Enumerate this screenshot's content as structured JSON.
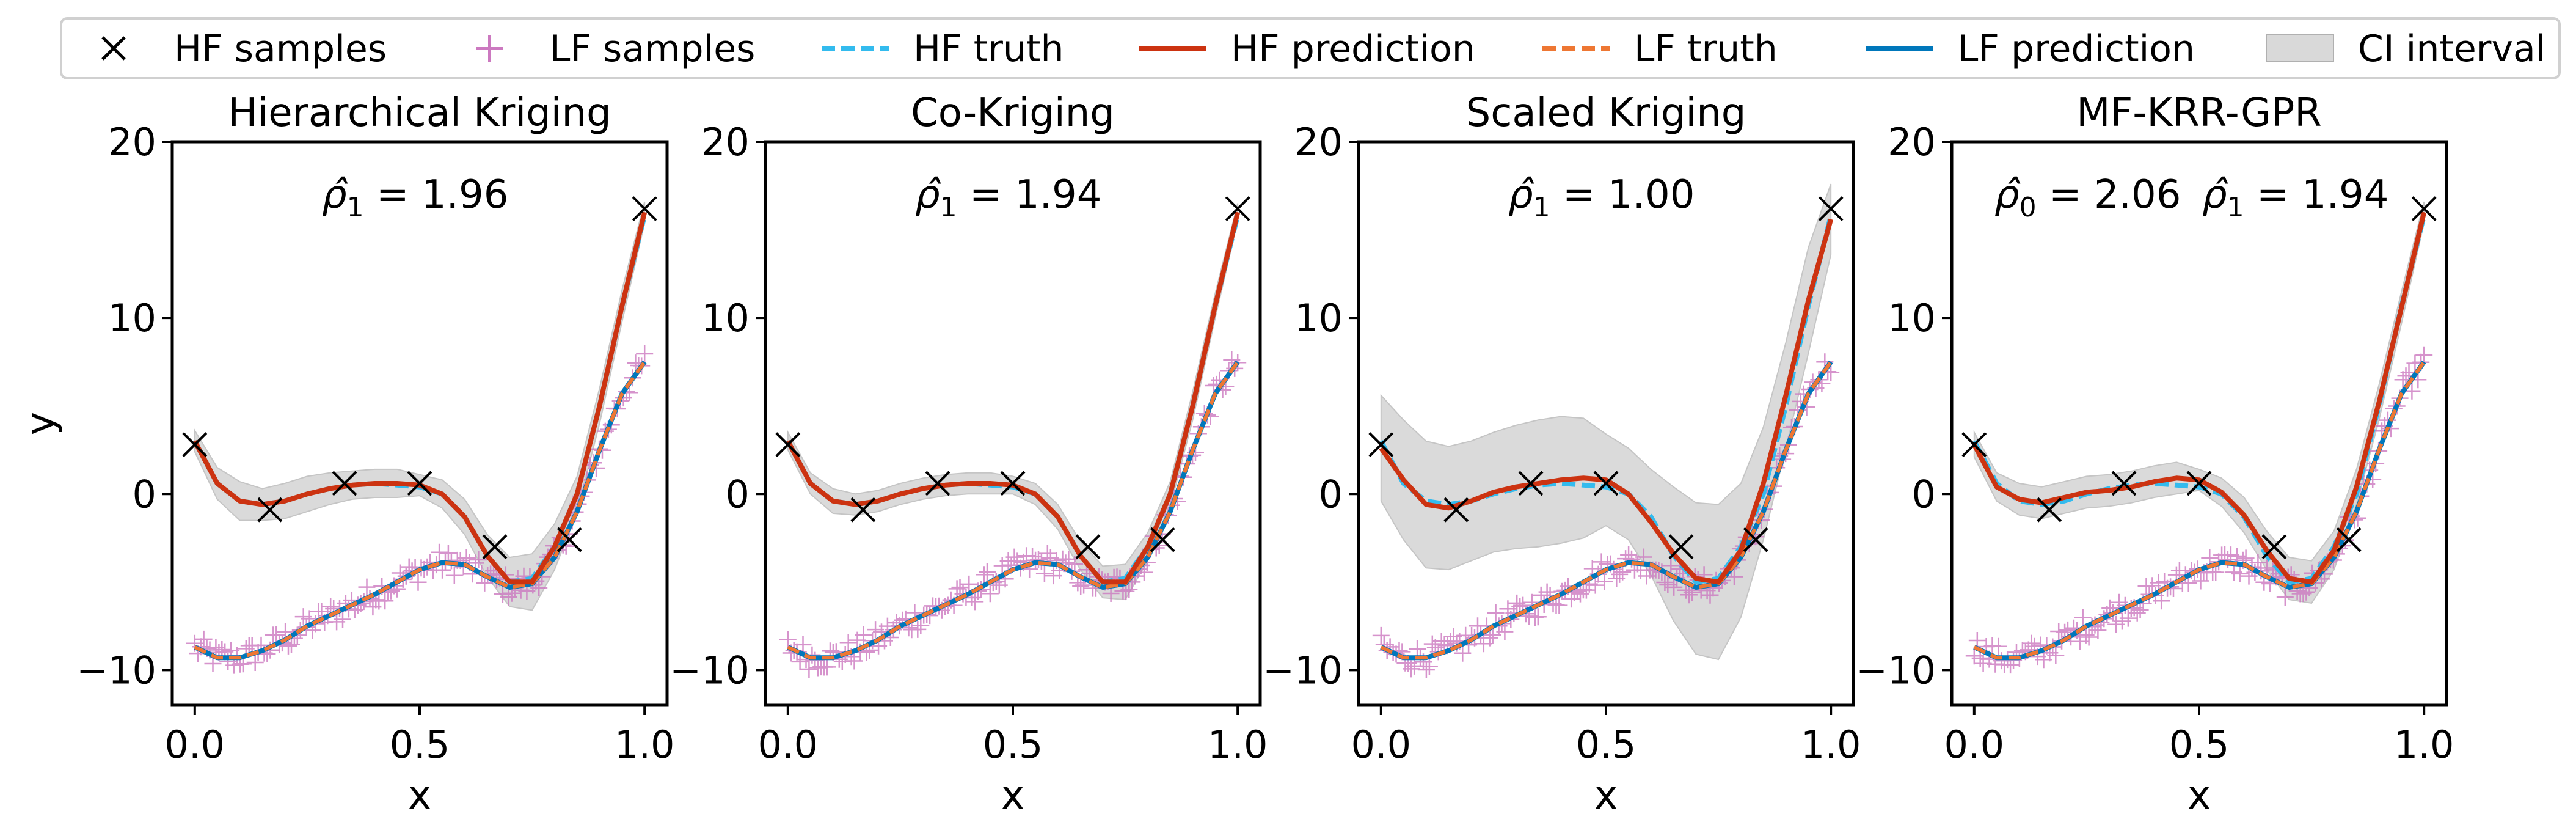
{
  "legend": {
    "items": [
      {
        "key": "hf_samples",
        "label": "HF samples",
        "kind": "x-marker",
        "color": "#000000"
      },
      {
        "key": "lf_samples",
        "label": "LF samples",
        "kind": "plus-marker",
        "color": "#cc79c0"
      },
      {
        "key": "hf_truth",
        "label": "HF truth",
        "kind": "dashed-line",
        "color": "#33bbee"
      },
      {
        "key": "hf_prediction",
        "label": "HF prediction",
        "kind": "solid-line",
        "color": "#cc3311"
      },
      {
        "key": "lf_truth",
        "label": "LF truth",
        "kind": "dashed-line",
        "color": "#ee7733"
      },
      {
        "key": "lf_prediction",
        "label": "LF prediction",
        "kind": "solid-line",
        "color": "#0077bb"
      },
      {
        "key": "ci_interval",
        "label": "CI interval",
        "kind": "patch",
        "color": "#bbbbbb"
      }
    ]
  },
  "chart_data": [
    {
      "type": "line",
      "title": "Hierarchical Kriging",
      "annotation": {
        "prefix": "",
        "rho_values": [
          {
            "symbol": "ρ̂",
            "sub": "1",
            "value": "1.96"
          }
        ]
      },
      "xlabel": "x",
      "ylabel": "y",
      "xlim": [
        -0.05,
        1.05
      ],
      "ylim": [
        -12,
        20
      ],
      "xticks": [
        "0.0",
        "0.5",
        "1.0"
      ],
      "yticks": [
        "−10",
        "0",
        "10",
        "20"
      ],
      "hf_samples": {
        "x": [
          0.0,
          0.167,
          0.333,
          0.5,
          0.667,
          0.833,
          1.0
        ],
        "y": [
          2.8,
          -0.9,
          0.6,
          0.6,
          -3.0,
          -2.6,
          16.2
        ]
      },
      "x": [
        0.0,
        0.05,
        0.1,
        0.15,
        0.2,
        0.25,
        0.3,
        0.35,
        0.4,
        0.45,
        0.5,
        0.55,
        0.6,
        0.65,
        0.7,
        0.75,
        0.8,
        0.85,
        0.9,
        0.95,
        1.0
      ],
      "hf_truth": [
        3.0,
        0.6,
        -0.4,
        -0.6,
        -0.4,
        0.0,
        0.3,
        0.5,
        0.6,
        0.5,
        0.4,
        0.0,
        -1.3,
        -3.5,
        -5.0,
        -4.8,
        -3.0,
        0.0,
        5.0,
        10.7,
        15.8
      ],
      "hf_prediction": [
        3.0,
        0.6,
        -0.4,
        -0.6,
        -0.4,
        0.0,
        0.3,
        0.5,
        0.6,
        0.6,
        0.5,
        0.0,
        -1.3,
        -3.5,
        -5.0,
        -5.0,
        -3.0,
        0.0,
        5.0,
        10.7,
        16.0
      ],
      "hf_ci_half_width": [
        0.6,
        0.9,
        1.1,
        0.9,
        1.0,
        1.0,
        0.9,
        0.8,
        0.8,
        0.8,
        0.6,
        0.8,
        1.0,
        1.2,
        1.4,
        1.6,
        1.3,
        1.0,
        1.0,
        0.9,
        0.6
      ],
      "lf_truth": [
        -8.7,
        -9.3,
        -9.3,
        -8.9,
        -8.3,
        -7.5,
        -6.9,
        -6.3,
        -5.7,
        -5.0,
        -4.3,
        -3.9,
        -4.0,
        -4.7,
        -5.3,
        -5.1,
        -3.6,
        -1.0,
        2.5,
        5.7,
        7.5
      ],
      "lf_prediction": [
        -8.7,
        -9.3,
        -9.3,
        -8.9,
        -8.3,
        -7.5,
        -6.9,
        -6.3,
        -5.7,
        -5.0,
        -4.3,
        -3.9,
        -4.0,
        -4.7,
        -5.3,
        -5.1,
        -3.6,
        -1.0,
        2.5,
        5.7,
        7.5
      ]
    },
    {
      "type": "line",
      "title": "Co-Kriging",
      "annotation": {
        "prefix": "",
        "rho_values": [
          {
            "symbol": "ρ̂",
            "sub": "1",
            "value": "1.94"
          }
        ]
      },
      "xlabel": "x",
      "ylabel": "",
      "xlim": [
        -0.05,
        1.05
      ],
      "ylim": [
        -12,
        20
      ],
      "xticks": [
        "0.0",
        "0.5",
        "1.0"
      ],
      "yticks": [
        "−10",
        "0",
        "10",
        "20"
      ],
      "hf_samples": {
        "x": [
          0.0,
          0.167,
          0.333,
          0.5,
          0.667,
          0.833,
          1.0
        ],
        "y": [
          2.8,
          -0.9,
          0.6,
          0.6,
          -3.0,
          -2.6,
          16.2
        ]
      },
      "x": [
        0.0,
        0.05,
        0.1,
        0.15,
        0.2,
        0.25,
        0.3,
        0.35,
        0.4,
        0.45,
        0.5,
        0.55,
        0.6,
        0.65,
        0.7,
        0.75,
        0.8,
        0.85,
        0.9,
        0.95,
        1.0
      ],
      "hf_truth": [
        3.0,
        0.6,
        -0.4,
        -0.6,
        -0.4,
        0.0,
        0.3,
        0.5,
        0.6,
        0.5,
        0.4,
        0.0,
        -1.3,
        -3.5,
        -5.0,
        -4.8,
        -3.0,
        0.0,
        5.0,
        10.7,
        15.8
      ],
      "hf_prediction": [
        3.0,
        0.6,
        -0.4,
        -0.6,
        -0.4,
        0.0,
        0.3,
        0.5,
        0.6,
        0.6,
        0.5,
        0.0,
        -1.3,
        -3.5,
        -5.0,
        -5.0,
        -3.0,
        0.0,
        5.0,
        10.7,
        16.0
      ],
      "hf_ci_half_width": [
        0.5,
        0.6,
        0.7,
        0.6,
        0.6,
        0.6,
        0.6,
        0.6,
        0.6,
        0.6,
        0.5,
        0.6,
        0.7,
        0.8,
        0.9,
        1.0,
        0.8,
        0.7,
        0.8,
        0.7,
        0.5
      ],
      "lf_truth": [
        -8.7,
        -9.3,
        -9.3,
        -8.9,
        -8.3,
        -7.5,
        -6.9,
        -6.3,
        -5.7,
        -5.0,
        -4.3,
        -3.9,
        -4.0,
        -4.7,
        -5.3,
        -5.1,
        -3.6,
        -1.0,
        2.5,
        5.7,
        7.5
      ],
      "lf_prediction": [
        -8.7,
        -9.3,
        -9.3,
        -8.9,
        -8.3,
        -7.5,
        -6.9,
        -6.3,
        -5.7,
        -5.0,
        -4.3,
        -3.9,
        -4.0,
        -4.7,
        -5.3,
        -5.1,
        -3.6,
        -1.0,
        2.5,
        5.7,
        7.5
      ]
    },
    {
      "type": "line",
      "title": "Scaled Kriging",
      "annotation": {
        "prefix": "",
        "rho_values": [
          {
            "symbol": "ρ̂",
            "sub": "1",
            "value": "1.00"
          }
        ]
      },
      "xlabel": "x",
      "ylabel": "",
      "xlim": [
        -0.05,
        1.05
      ],
      "ylim": [
        -12,
        20
      ],
      "xticks": [
        "0.0",
        "0.5",
        "1.0"
      ],
      "yticks": [
        "−10",
        "0",
        "10",
        "20"
      ],
      "hf_samples": {
        "x": [
          0.0,
          0.167,
          0.333,
          0.5,
          0.667,
          0.833,
          1.0
        ],
        "y": [
          2.8,
          -0.9,
          0.6,
          0.6,
          -3.0,
          -2.6,
          16.2
        ]
      },
      "x": [
        0.0,
        0.05,
        0.1,
        0.15,
        0.2,
        0.25,
        0.3,
        0.35,
        0.4,
        0.45,
        0.5,
        0.55,
        0.6,
        0.65,
        0.7,
        0.75,
        0.8,
        0.85,
        0.9,
        0.95,
        1.0
      ],
      "hf_truth": [
        3.0,
        0.6,
        -0.4,
        -0.6,
        -0.4,
        0.0,
        0.3,
        0.5,
        0.6,
        0.5,
        0.4,
        0.0,
        -1.3,
        -3.5,
        -5.0,
        -4.8,
        -3.0,
        0.0,
        5.0,
        10.7,
        15.8
      ],
      "hf_prediction": [
        2.6,
        0.8,
        -0.6,
        -0.8,
        -0.4,
        0.1,
        0.4,
        0.6,
        0.8,
        0.9,
        0.8,
        0.0,
        -1.6,
        -3.4,
        -4.8,
        -5.0,
        -3.2,
        0.6,
        5.6,
        11.0,
        15.6
      ],
      "hf_ci_half_width": [
        3.0,
        3.4,
        3.6,
        3.5,
        3.4,
        3.4,
        3.5,
        3.6,
        3.6,
        3.4,
        2.6,
        2.6,
        3.0,
        3.8,
        4.3,
        4.4,
        3.8,
        3.2,
        3.0,
        3.0,
        2.0
      ],
      "lf_truth": [
        -8.7,
        -9.3,
        -9.3,
        -8.9,
        -8.3,
        -7.5,
        -6.9,
        -6.3,
        -5.7,
        -5.0,
        -4.3,
        -3.9,
        -4.0,
        -4.7,
        -5.3,
        -5.1,
        -3.6,
        -1.0,
        2.5,
        5.7,
        7.5
      ],
      "lf_prediction": [
        -8.7,
        -9.3,
        -9.3,
        -8.9,
        -8.3,
        -7.5,
        -6.9,
        -6.3,
        -5.7,
        -5.0,
        -4.3,
        -3.9,
        -4.0,
        -4.7,
        -5.3,
        -5.1,
        -3.6,
        -1.0,
        2.5,
        5.7,
        7.5
      ]
    },
    {
      "type": "line",
      "title": "MF-KRR-GPR",
      "annotation": {
        "prefix": "",
        "rho_values": [
          {
            "symbol": "ρ̂",
            "sub": "0",
            "value": "2.06"
          },
          {
            "symbol": "ρ̂",
            "sub": "1",
            "value": "1.94"
          }
        ]
      },
      "xlabel": "x",
      "ylabel": "",
      "xlim": [
        -0.05,
        1.05
      ],
      "ylim": [
        -12,
        20
      ],
      "xticks": [
        "0.0",
        "0.5",
        "1.0"
      ],
      "yticks": [
        "−10",
        "0",
        "10",
        "20"
      ],
      "hf_samples": {
        "x": [
          0.0,
          0.167,
          0.333,
          0.5,
          0.667,
          0.833,
          1.0
        ],
        "y": [
          2.8,
          -0.9,
          0.6,
          0.6,
          -3.0,
          -2.6,
          16.2
        ]
      },
      "x": [
        0.0,
        0.05,
        0.1,
        0.15,
        0.2,
        0.25,
        0.3,
        0.35,
        0.4,
        0.45,
        0.5,
        0.55,
        0.6,
        0.65,
        0.7,
        0.75,
        0.8,
        0.85,
        0.9,
        0.95,
        1.0
      ],
      "hf_truth": [
        3.0,
        0.6,
        -0.4,
        -0.6,
        -0.4,
        0.0,
        0.3,
        0.5,
        0.6,
        0.5,
        0.4,
        0.0,
        -1.3,
        -3.5,
        -5.0,
        -4.8,
        -3.0,
        0.0,
        5.0,
        10.7,
        15.8
      ],
      "hf_prediction": [
        2.8,
        0.4,
        -0.3,
        -0.5,
        -0.2,
        0.1,
        0.2,
        0.4,
        0.7,
        0.9,
        0.8,
        0.1,
        -1.2,
        -3.2,
        -4.8,
        -5.0,
        -3.2,
        0.4,
        5.2,
        10.6,
        16.0
      ],
      "hf_ci_half_width": [
        0.7,
        0.8,
        0.9,
        0.9,
        0.9,
        0.9,
        0.9,
        0.9,
        0.9,
        0.9,
        0.6,
        0.8,
        1.0,
        1.1,
        1.2,
        1.2,
        1.1,
        1.0,
        1.0,
        0.9,
        0.6
      ],
      "lf_truth": [
        -8.7,
        -9.3,
        -9.3,
        -8.9,
        -8.3,
        -7.5,
        -6.9,
        -6.3,
        -5.7,
        -5.0,
        -4.3,
        -3.9,
        -4.0,
        -4.7,
        -5.3,
        -5.1,
        -3.6,
        -1.0,
        2.5,
        5.7,
        7.5
      ],
      "lf_prediction": [
        -8.7,
        -9.3,
        -9.3,
        -8.9,
        -8.3,
        -7.5,
        -6.9,
        -6.3,
        -5.7,
        -5.0,
        -4.3,
        -3.9,
        -4.0,
        -4.7,
        -5.3,
        -5.1,
        -3.6,
        -1.0,
        2.5,
        5.7,
        7.5
      ]
    }
  ]
}
